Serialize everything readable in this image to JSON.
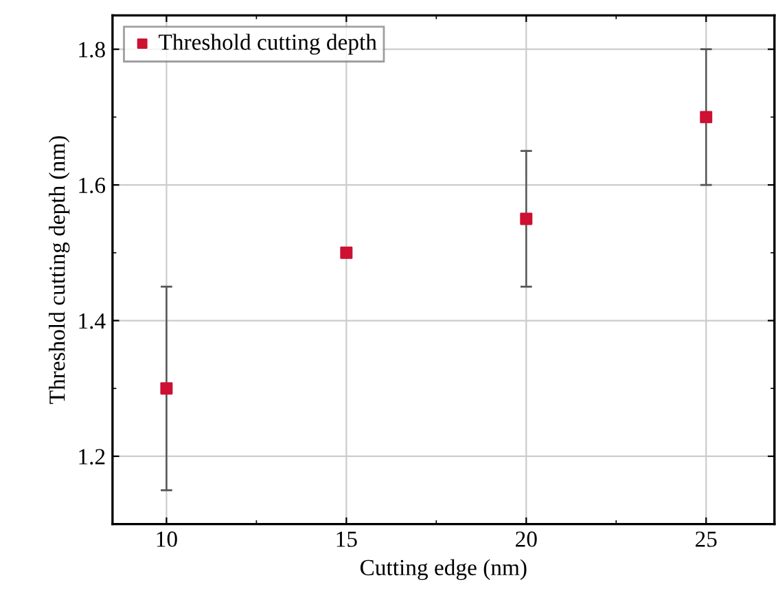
{
  "chart_data": {
    "type": "scatter",
    "xlabel": "Cutting edge (nm)",
    "ylabel": "Threshold cutting depth (nm)",
    "x": [
      10,
      15,
      20,
      25
    ],
    "series": [
      {
        "name": "Threshold cutting depth",
        "color": "#cc1133",
        "values": [
          1.3,
          1.5,
          1.55,
          1.7
        ],
        "errors": [
          0.15,
          null,
          0.1,
          0.1
        ]
      }
    ],
    "xlim": [
      8.5,
      26.9
    ],
    "ylim": [
      1.1,
      1.85
    ],
    "xticks": [
      10,
      15,
      20,
      25
    ],
    "yticks": [
      1.2,
      1.4,
      1.6,
      1.8
    ],
    "grid": true,
    "legend": "top left",
    "marker": "square"
  }
}
